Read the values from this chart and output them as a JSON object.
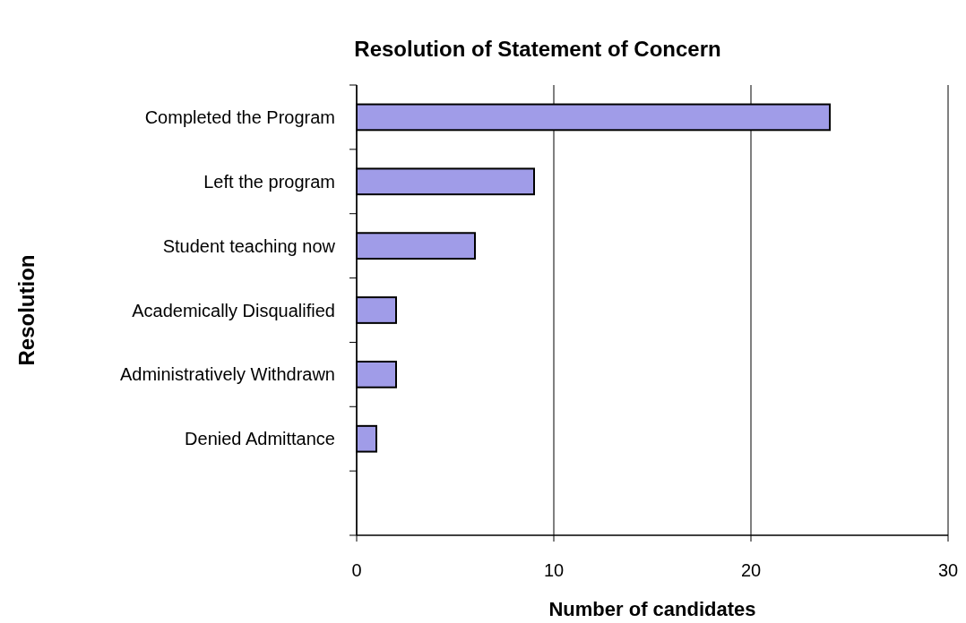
{
  "chart_data": {
    "type": "bar",
    "title": "Resolution of Statement of Concern",
    "xlabel": "Number of candidates",
    "ylabel": "Resolution",
    "orientation": "horizontal",
    "categories": [
      "Completed the Program",
      "Left the program",
      "Student teaching now",
      "Academically Disqualified",
      "Administratively Withdrawn",
      "Denied Admittance",
      null
    ],
    "values": [
      24,
      9,
      6,
      2,
      2,
      1,
      null
    ],
    "color": "#a09ce8",
    "xlim": [
      0,
      30
    ],
    "xticks": [
      0,
      10,
      20,
      30
    ],
    "grid": "x"
  }
}
